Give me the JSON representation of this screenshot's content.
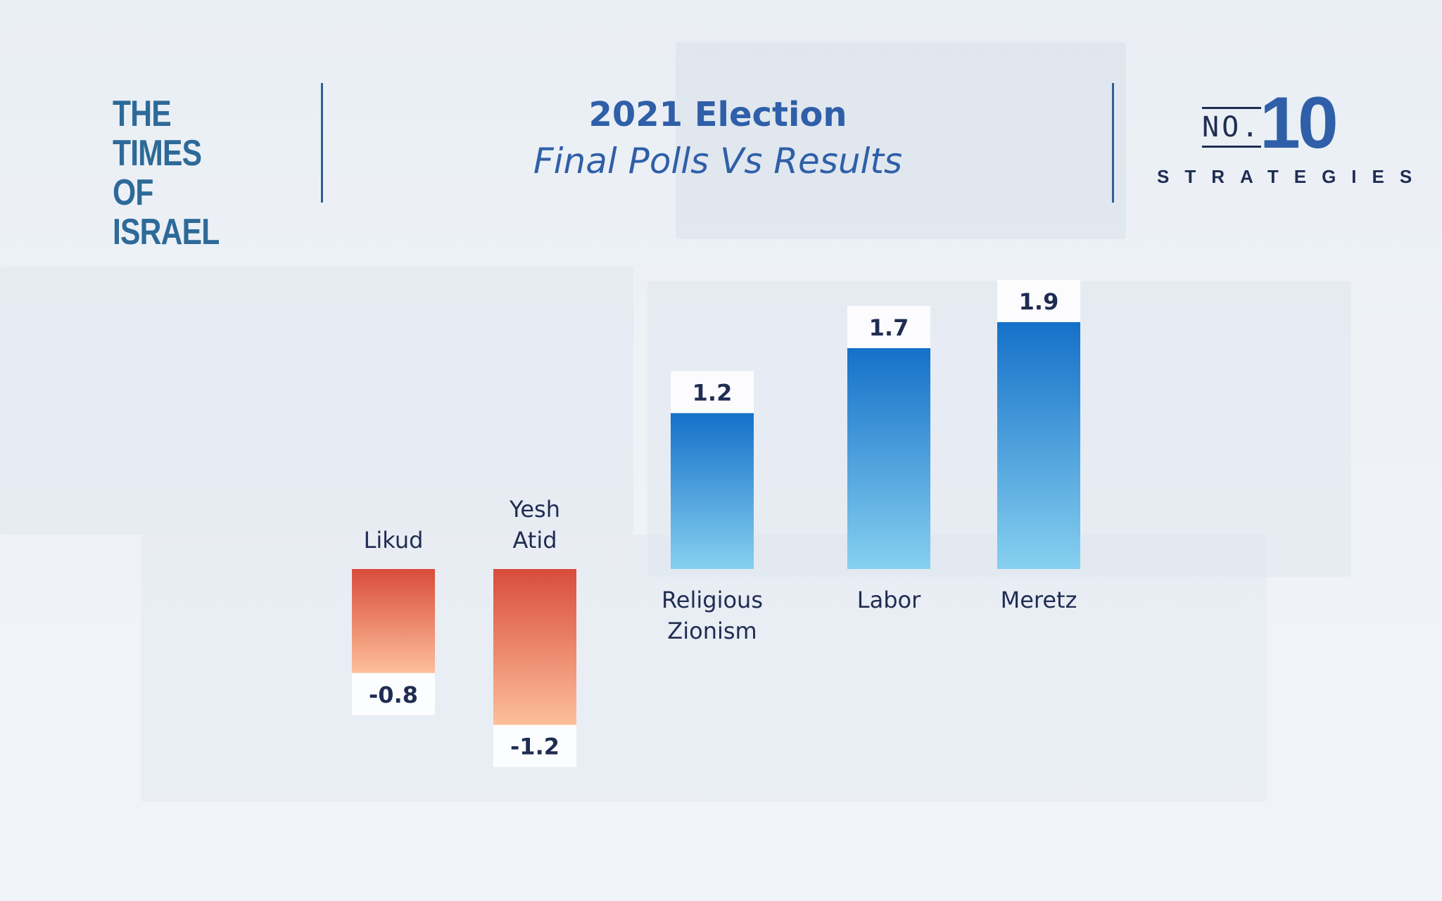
{
  "header": {
    "publisher_logo_lines": [
      "THE TIMES",
      "OF ISRAEL"
    ],
    "title": "2021 Election",
    "subtitle": "Final Polls Vs Results",
    "brand_no": "NO.",
    "brand_number": "10",
    "brand_word": "STRATEGIES"
  },
  "colors": {
    "title": "#2f5fa8",
    "positive_top": "#1570c8",
    "positive_bottom": "#86d0f0",
    "negative_top": "#d94c3c",
    "negative_bottom": "#fdbf9a",
    "axis": "#1f4f86",
    "label": "#1f2d52"
  },
  "chart_data": {
    "type": "bar",
    "title": "2021 Election",
    "subtitle": "Final Polls Vs Results",
    "categories": [
      "Likud",
      "Yesh Atid",
      "Religious Zionism",
      "Labor",
      "Meretz"
    ],
    "category_lines": [
      [
        "Likud"
      ],
      [
        "Yesh",
        "Atid"
      ],
      [
        "Religious",
        "Zionism"
      ],
      [
        "Labor"
      ],
      [
        "Meretz"
      ]
    ],
    "values": [
      -0.8,
      -1.2,
      1.2,
      1.7,
      1.9
    ],
    "value_labels": [
      "-0.8",
      "-1.2",
      "1.2",
      "1.7",
      "1.9"
    ],
    "xlabel": "",
    "ylabel": "",
    "ylim": [
      -1.2,
      1.9
    ],
    "grid": false,
    "legend": "none"
  }
}
